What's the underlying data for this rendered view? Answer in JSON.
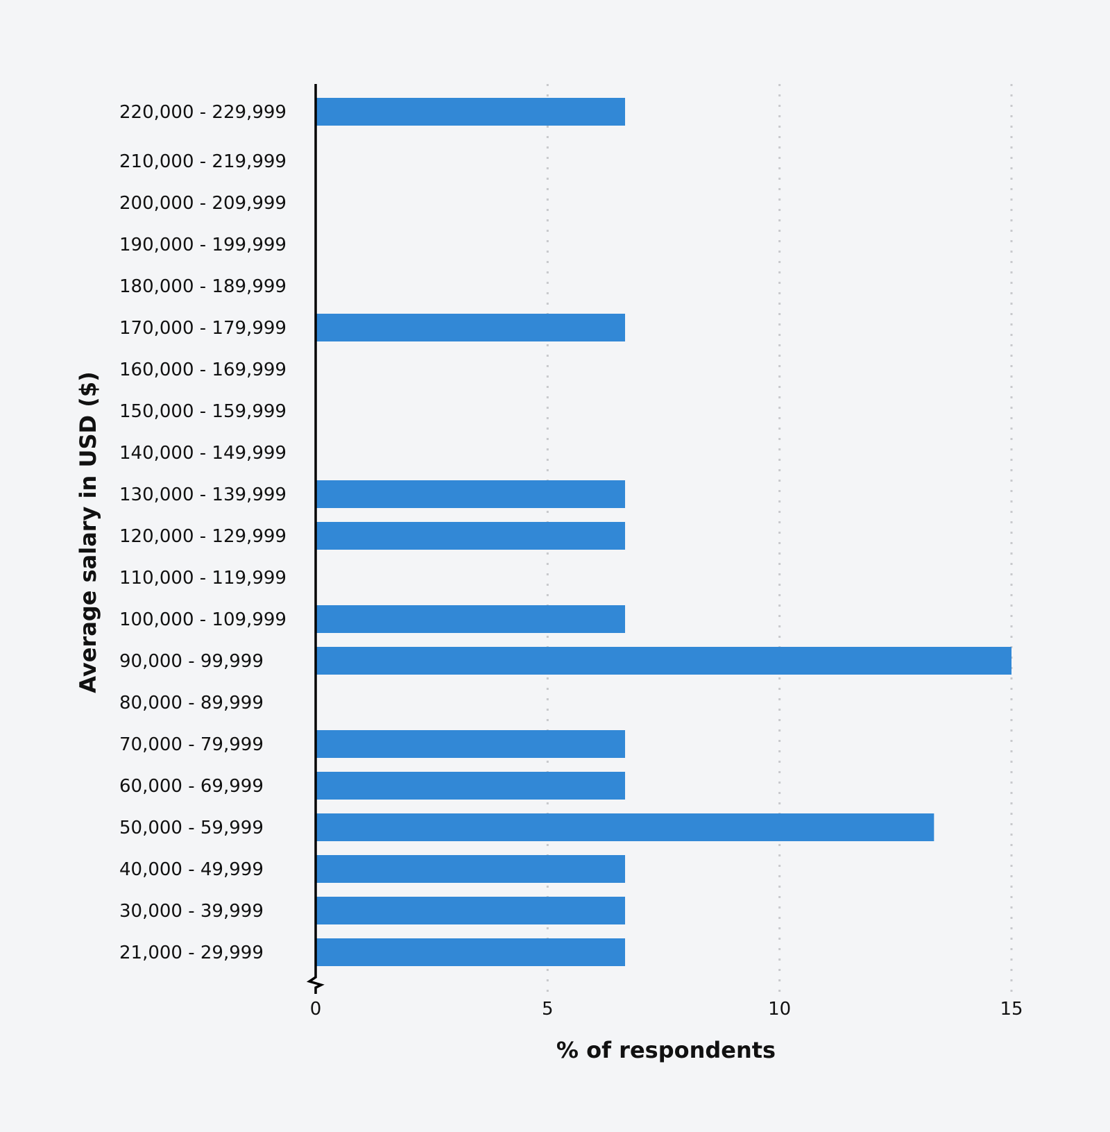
{
  "chart_data": {
    "type": "bar",
    "orientation": "horizontal",
    "categories": [
      "220,000 - 229,999",
      "210,000 - 219,999",
      "200,000 - 209,999",
      "190,000 - 199,999",
      "180,000 - 189,999",
      "170,000 - 179,999",
      "160,000 - 169,999",
      "150,000 - 159,999",
      "140,000 - 149,999",
      "130,000 - 139,999",
      "120,000 - 129,999",
      "110,000 - 119,999",
      "100,000 - 109,999",
      "90,000 - 99,999",
      "80,000 - 89,999",
      "70,000 - 79,999",
      "60,000 - 69,999",
      "50,000 - 59,999",
      "40,000 - 49,999",
      "30,000 - 39,999",
      "21,000 - 29,999"
    ],
    "values": [
      6.67,
      0,
      0,
      0,
      0,
      6.67,
      0,
      0,
      0,
      6.67,
      6.67,
      0,
      6.67,
      15.0,
      0,
      6.67,
      6.67,
      13.33,
      6.67,
      6.67,
      6.67
    ],
    "xlabel": "% of respondents",
    "ylabel": "Average salary in USD ($)",
    "xlim": [
      0,
      15
    ],
    "xticks": [
      "0",
      "5",
      "10",
      "15"
    ],
    "grid": "vertical dotted",
    "axis_break": true,
    "bar_color": "#3288d6",
    "background": "#f4f5f7"
  }
}
